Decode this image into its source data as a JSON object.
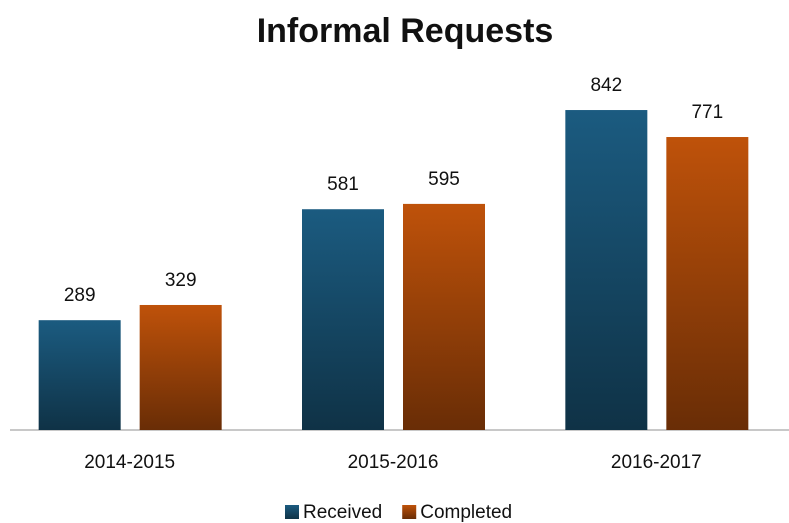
{
  "chart_data": {
    "type": "bar",
    "title": "Informal Requests",
    "categories": [
      "2014-2015",
      "2015-2016",
      "2016-2017"
    ],
    "series": [
      {
        "name": "Received",
        "color": "#1b5b80",
        "values": [
          289,
          581,
          842
        ]
      },
      {
        "name": "Completed",
        "color": "#bf520a",
        "values": [
          329,
          595,
          771
        ]
      }
    ],
    "legend": "bottom"
  }
}
